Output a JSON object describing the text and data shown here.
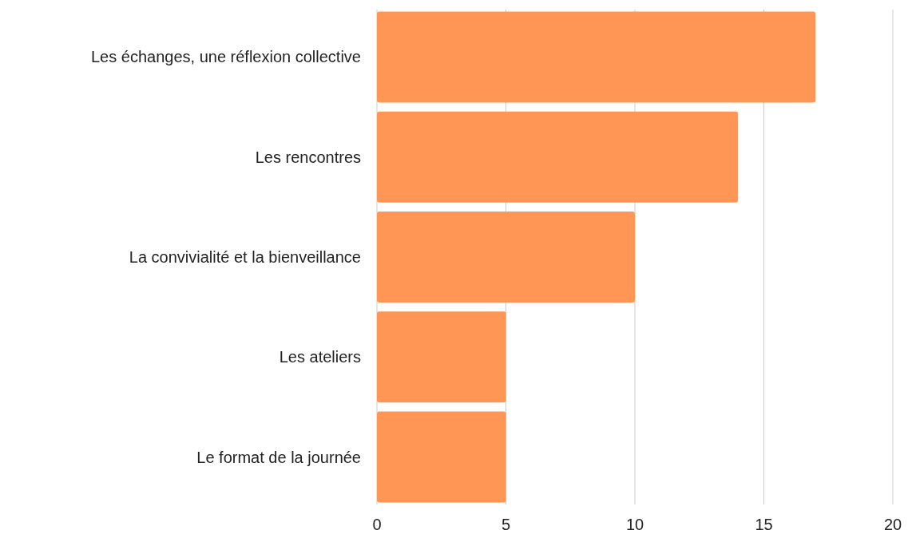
{
  "chart_data": {
    "type": "bar",
    "orientation": "horizontal",
    "categories": [
      "Les échanges, une réflexion collective",
      "Les rencontres",
      "La convivialité et la bienveillance",
      "Les ateliers",
      "Le format de la journée"
    ],
    "values": [
      17,
      14,
      10,
      5,
      5
    ],
    "color": "#ff9655",
    "xlim": [
      0,
      20
    ],
    "xticks": [
      0,
      5,
      10,
      15,
      20
    ],
    "grid": "x"
  }
}
